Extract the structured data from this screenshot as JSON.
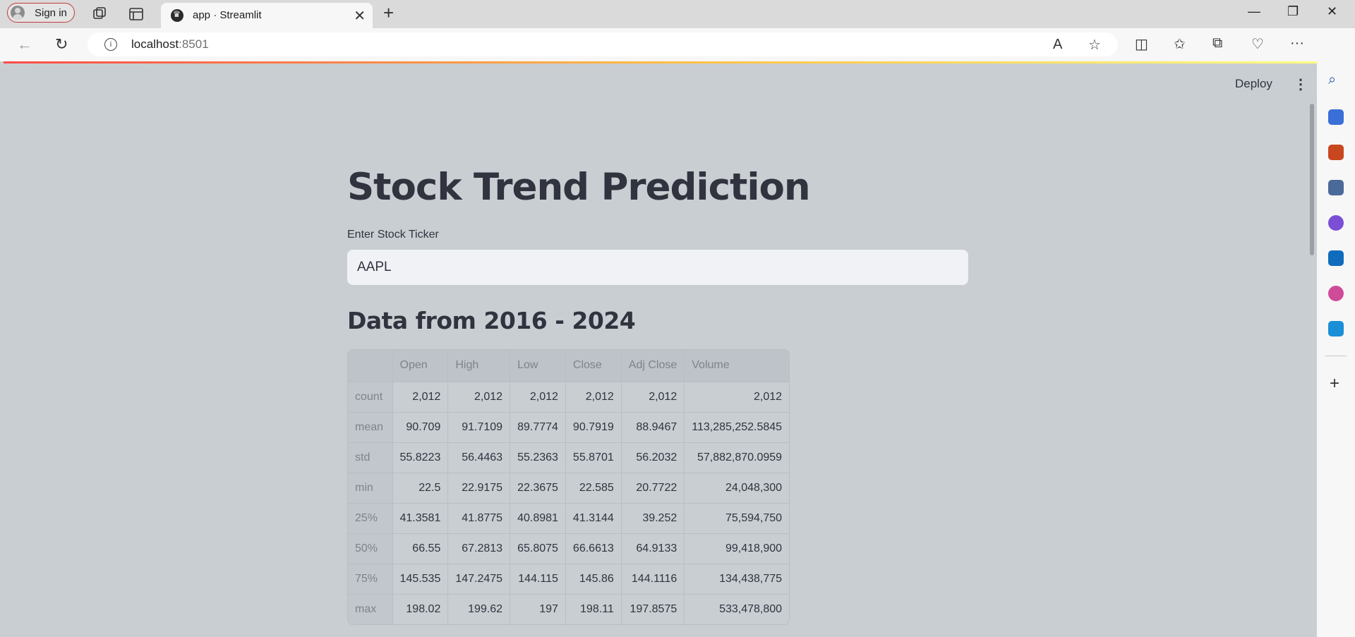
{
  "browser": {
    "signin_label": "Sign in",
    "tab_title": "app · Streamlit",
    "url_host": "localhost",
    "url_port": ":8501"
  },
  "streamlit": {
    "deploy_label": "Deploy",
    "title": "Stock Trend Prediction",
    "ticker_label": "Enter Stock Ticker",
    "ticker_value": "AAPL",
    "subheader": "Data from 2016 - 2024"
  },
  "table": {
    "columns": [
      "",
      "Open",
      "High",
      "Low",
      "Close",
      "Adj Close",
      "Volume"
    ],
    "rows": [
      {
        "label": "count",
        "values": [
          "2,012",
          "2,012",
          "2,012",
          "2,012",
          "2,012",
          "2,012"
        ]
      },
      {
        "label": "mean",
        "values": [
          "90.709",
          "91.7109",
          "89.7774",
          "90.7919",
          "88.9467",
          "113,285,252.5845"
        ]
      },
      {
        "label": "std",
        "values": [
          "55.8223",
          "56.4463",
          "55.2363",
          "55.8701",
          "56.2032",
          "57,882,870.0959"
        ]
      },
      {
        "label": "min",
        "values": [
          "22.5",
          "22.9175",
          "22.3675",
          "22.585",
          "20.7722",
          "24,048,300"
        ]
      },
      {
        "label": "25%",
        "values": [
          "41.3581",
          "41.8775",
          "40.8981",
          "41.3144",
          "39.252",
          "75,594,750"
        ]
      },
      {
        "label": "50%",
        "values": [
          "66.55",
          "67.2813",
          "65.8075",
          "66.6613",
          "64.9133",
          "99,418,900"
        ]
      },
      {
        "label": "75%",
        "values": [
          "145.535",
          "147.2475",
          "144.115",
          "145.86",
          "144.1116",
          "134,438,775"
        ]
      },
      {
        "label": "max",
        "values": [
          "198.02",
          "199.62",
          "197",
          "198.11",
          "197.8575",
          "533,478,800"
        ]
      }
    ]
  },
  "colors": {
    "accent_red": "#ff4b4b",
    "text": "#31333f",
    "page_bg": "#c8ced2"
  }
}
